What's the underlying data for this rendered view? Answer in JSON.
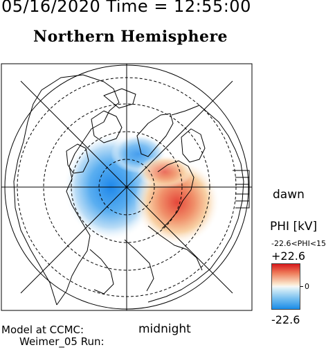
{
  "header": {
    "datetime": "05/16/2020 Time = 12:55:00",
    "title": "Northern Hemisphere"
  },
  "map": {
    "projection": "polar",
    "pole": "north",
    "orientation": {
      "bottom": "midnight",
      "right": "dawn"
    },
    "labels": {
      "dawn": "dawn",
      "midnight": "midnight"
    },
    "background": "#ffffff",
    "coastline_color": "#000000",
    "grid_style": "dashed latitude circles, 6 meridian lines",
    "potential_cells": [
      {
        "name": "negative-cell",
        "polarity": "negative",
        "location": "dusk/pre-midnight sector",
        "color": "#2a8ee6"
      },
      {
        "name": "positive-cell",
        "polarity": "positive",
        "location": "dawn sector",
        "color": "#e5473a"
      }
    ]
  },
  "colorbar": {
    "title": "PHI [kV]",
    "range_text": "-22.6<PHI<15",
    "max_label": "+22.6",
    "mid_label": "0",
    "min_label": "-22.6",
    "min": -22.6,
    "max": 22.6,
    "colors": {
      "high": "#d7191c",
      "mid": "#f7f7f7",
      "low": "#1a8ce8"
    }
  },
  "footer": {
    "model": "Model at CCMC:",
    "run": "Weimer_05 Run:"
  }
}
